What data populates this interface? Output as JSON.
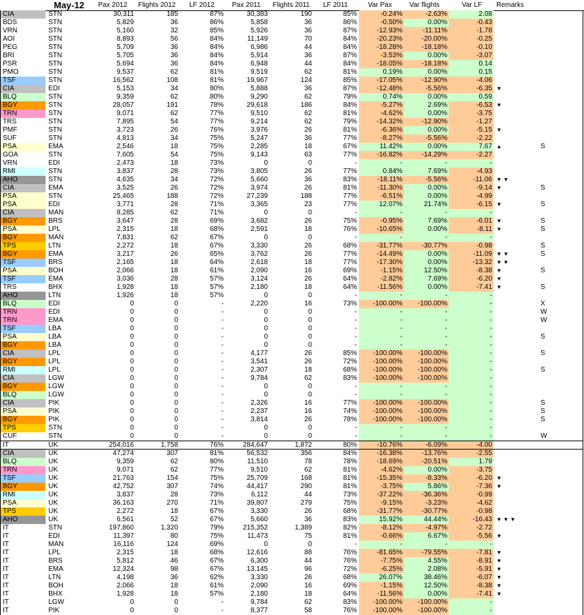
{
  "header": {
    "title": "May-12",
    "columns": [
      "Pax 2012",
      "Flights 2012",
      "LF 2012",
      "Pax 2011",
      "Flights 2011",
      "LF 2011",
      "Var Pax",
      "Var flights",
      "Var LF",
      "Remarks"
    ]
  },
  "colors": {
    "negative": "#ffcc99",
    "positive": "#ccffcc"
  },
  "code_colors": {
    "CIA": "#c0c0c0",
    "AHO": "#969696",
    "TSF": "#99ccff",
    "BLQ": "#ccffcc",
    "BGY": "#ff9900",
    "TRN": "#ff99cc",
    "PSA": "#ffffcc",
    "RMI": "#ccffff",
    "TPS": "#ffcc00"
  },
  "rows": [
    [
      "CIA",
      "STN",
      "30,311",
      "185",
      "87%",
      "30,383",
      "190",
      "85%",
      "-0.24%",
      "-2.63%",
      "2.08",
      "",
      ""
    ],
    [
      "BDS",
      "STN",
      "5,829",
      "36",
      "86%",
      "5,858",
      "36",
      "86%",
      "-0.50%",
      "0.00%",
      "-0.43",
      "",
      ""
    ],
    [
      "VRN",
      "STN",
      "5,160",
      "32",
      "85%",
      "5,926",
      "36",
      "87%",
      "-12.93%",
      "-11.11%",
      "-1.78",
      "",
      ""
    ],
    [
      "AOI",
      "STN",
      "8,893",
      "56",
      "84%",
      "11,149",
      "70",
      "84%",
      "-20.23%",
      "-20.00%",
      "-0.25",
      "",
      ""
    ],
    [
      "PEG",
      "STN",
      "5,709",
      "36",
      "84%",
      "6,986",
      "44",
      "84%",
      "-18.28%",
      "-18.18%",
      "-0.10",
      "",
      ""
    ],
    [
      "BRI",
      "STN",
      "5,705",
      "36",
      "84%",
      "5,914",
      "36",
      "87%",
      "-3.53%",
      "0.00%",
      "-3.07",
      "",
      ""
    ],
    [
      "PSR",
      "STN",
      "5,694",
      "36",
      "84%",
      "6,948",
      "44",
      "84%",
      "-18.05%",
      "-18.18%",
      "0.14",
      "",
      ""
    ],
    [
      "PMO",
      "STN",
      "9,537",
      "62",
      "81%",
      "9,519",
      "62",
      "81%",
      "0.19%",
      "0.00%",
      "0.15",
      "",
      ""
    ],
    [
      "TSF",
      "STN",
      "16,562",
      "108",
      "81%",
      "19,967",
      "124",
      "85%",
      "-17.05%",
      "-12.90%",
      "-4.06",
      "",
      ""
    ],
    [
      "CIA",
      "EDI",
      "5,153",
      "34",
      "80%",
      "5,888",
      "36",
      "87%",
      "-12.48%",
      "-5.56%",
      "-6.35",
      "▼",
      ""
    ],
    [
      "BLQ",
      "STN",
      "9,359",
      "62",
      "80%",
      "9,290",
      "62",
      "79%",
      "0.74%",
      "0.00%",
      "0.59",
      "",
      ""
    ],
    [
      "BGY",
      "STN",
      "28,057",
      "191",
      "78%",
      "29,618",
      "186",
      "84%",
      "-5.27%",
      "2.69%",
      "-6.53",
      "▼",
      ""
    ],
    [
      "TRN",
      "STN",
      "9,071",
      "62",
      "77%",
      "9,510",
      "62",
      "81%",
      "-4.62%",
      "0.00%",
      "-3.75",
      "",
      ""
    ],
    [
      "TRS",
      "STN",
      "7,895",
      "54",
      "77%",
      "9,214",
      "62",
      "79%",
      "-14.32%",
      "-12.90%",
      "-1.27",
      "",
      ""
    ],
    [
      "PMF",
      "STN",
      "3,723",
      "26",
      "76%",
      "3,976",
      "26",
      "81%",
      "-6.36%",
      "0.00%",
      "-5.15",
      "▼",
      ""
    ],
    [
      "SUF",
      "STN",
      "4,813",
      "34",
      "75%",
      "5,247",
      "36",
      "77%",
      "-8.27%",
      "-5.56%",
      "-2.22",
      "",
      ""
    ],
    [
      "PSA",
      "EMA",
      "2,546",
      "18",
      "75%",
      "2,285",
      "18",
      "67%",
      "11.42%",
      "0.00%",
      "7.67",
      "▲",
      "S"
    ],
    [
      "GOA",
      "STN",
      "7,605",
      "54",
      "75%",
      "9,143",
      "63",
      "77%",
      "-16.82%",
      "-14.29%",
      "-2.27",
      "",
      ""
    ],
    [
      "VRN",
      "EDI",
      "2,473",
      "18",
      "73%",
      "0",
      "0",
      "-",
      "-",
      "-",
      "-",
      "",
      ""
    ],
    [
      "RMI",
      "STN",
      "3,837",
      "28",
      "73%",
      "3,805",
      "26",
      "77%",
      "0.84%",
      "7.69%",
      "-4.93",
      "",
      ""
    ],
    [
      "AHO",
      "STN",
      "4,635",
      "34",
      "72%",
      "5,660",
      "36",
      "83%",
      "-18.11%",
      "-5.56%",
      "-11.06",
      "▼▼",
      ""
    ],
    [
      "CIA",
      "EMA",
      "3,525",
      "26",
      "72%",
      "3,974",
      "26",
      "81%",
      "-11.30%",
      "0.00%",
      "-9.14",
      "▼",
      "S"
    ],
    [
      "PSA",
      "STN",
      "25,465",
      "188",
      "72%",
      "27,239",
      "188",
      "77%",
      "-6.51%",
      "0.00%",
      "-4.99",
      "",
      ""
    ],
    [
      "PSA",
      "EDI",
      "3,771",
      "28",
      "71%",
      "3,365",
      "23",
      "77%",
      "12.07%",
      "21.74%",
      "-6.15",
      "▼",
      "S"
    ],
    [
      "CIA",
      "MAN",
      "8,285",
      "62",
      "71%",
      "0",
      "0",
      "-",
      "-",
      "-",
      "-",
      "",
      ""
    ],
    [
      "BGY",
      "BRS",
      "3,647",
      "28",
      "69%",
      "3,682",
      "26",
      "75%",
      "-0.95%",
      "7.69%",
      "-6.01",
      "▼",
      "S"
    ],
    [
      "PSA",
      "LPL",
      "2,315",
      "18",
      "68%",
      "2,591",
      "18",
      "76%",
      "-10.65%",
      "0.00%",
      "-8.11",
      "▼",
      "S"
    ],
    [
      "BGY",
      "MAN",
      "7,831",
      "62",
      "67%",
      "0",
      "0",
      "-",
      "-",
      "-",
      "-",
      "",
      ""
    ],
    [
      "TPS",
      "LTN",
      "2,272",
      "18",
      "67%",
      "3,330",
      "26",
      "68%",
      "-31.77%",
      "-30.77%",
      "-0.98",
      "",
      "S"
    ],
    [
      "BGY",
      "EMA",
      "3,217",
      "26",
      "65%",
      "3,762",
      "26",
      "77%",
      "-14.49%",
      "0.00%",
      "-11.09",
      "▼▼",
      "S"
    ],
    [
      "TSF",
      "BRS",
      "2,165",
      "18",
      "64%",
      "2,618",
      "18",
      "77%",
      "-17.30%",
      "0.00%",
      "-13.32",
      "▼▼",
      ""
    ],
    [
      "PSA",
      "BOH",
      "2,066",
      "18",
      "61%",
      "2,090",
      "16",
      "69%",
      "-1.15%",
      "12.50%",
      "-8.38",
      "▼",
      "S"
    ],
    [
      "TSF",
      "EMA",
      "3,036",
      "28",
      "57%",
      "3,124",
      "26",
      "64%",
      "-2.82%",
      "7.69%",
      "-6.20",
      "▼",
      ""
    ],
    [
      "TRS",
      "BHX",
      "1,928",
      "18",
      "57%",
      "2,180",
      "18",
      "64%",
      "-11.56%",
      "0.00%",
      "-7.41",
      "▼",
      "S"
    ],
    [
      "AHO",
      "LTN",
      "1,926",
      "18",
      "57%",
      "0",
      "0",
      "-",
      "-",
      "-",
      "-",
      "",
      ""
    ],
    [
      "BLQ",
      "EDI",
      "0",
      "0",
      "-",
      "2,220",
      "16",
      "73%",
      "-100.00%",
      "-100.00%",
      "-",
      "",
      "X"
    ],
    [
      "TRN",
      "EDI",
      "0",
      "0",
      "-",
      "0",
      "0",
      "-",
      "-",
      "-",
      "-",
      "",
      "W"
    ],
    [
      "TRN",
      "EMA",
      "0",
      "0",
      "-",
      "0",
      "0",
      "-",
      "-",
      "-",
      "-",
      "",
      "W"
    ],
    [
      "TSF",
      "LBA",
      "0",
      "0",
      "-",
      "0",
      "0",
      "-",
      "-",
      "-",
      "-",
      "",
      ""
    ],
    [
      "PSA",
      "LBA",
      "0",
      "0",
      "-",
      "0",
      "0",
      "-",
      "-",
      "-",
      "-",
      "",
      "S"
    ],
    [
      "BGY",
      "LBA",
      "0",
      "0",
      "-",
      "0",
      "0",
      "-",
      "-",
      "-",
      "-",
      "",
      ""
    ],
    [
      "CIA",
      "LPL",
      "0",
      "0",
      "-",
      "4,177",
      "26",
      "85%",
      "-100.00%",
      "-100.00%",
      "-",
      "",
      "S"
    ],
    [
      "BGY",
      "LPL",
      "0",
      "0",
      "-",
      "3,541",
      "26",
      "72%",
      "-100.00%",
      "-100.00%",
      "-",
      "",
      ""
    ],
    [
      "RMI",
      "LPL",
      "0",
      "0",
      "-",
      "2,307",
      "18",
      "68%",
      "-100.00%",
      "-100.00%",
      "-",
      "",
      "S"
    ],
    [
      "CIA",
      "LGW",
      "0",
      "0",
      "-",
      "9,784",
      "62",
      "83%",
      "-100.00%",
      "-100.00%",
      "-",
      "",
      ""
    ],
    [
      "BGY",
      "LGW",
      "0",
      "0",
      "-",
      "0",
      "0",
      "-",
      "-",
      "-",
      "-",
      "",
      ""
    ],
    [
      "BLQ",
      "LGW",
      "0",
      "0",
      "-",
      "0",
      "0",
      "-",
      "-",
      "-",
      "-",
      "",
      ""
    ],
    [
      "CIA",
      "PIK",
      "0",
      "0",
      "-",
      "2,326",
      "16",
      "77%",
      "-100.00%",
      "-100.00%",
      "-",
      "",
      "S"
    ],
    [
      "PSA",
      "PIK",
      "0",
      "0",
      "-",
      "2,237",
      "16",
      "74%",
      "-100.00%",
      "-100.00%",
      "-",
      "",
      "S"
    ],
    [
      "BGY",
      "PIK",
      "0",
      "0",
      "-",
      "3,814",
      "26",
      "78%",
      "-100.00%",
      "-100.00%",
      "-",
      "",
      "S"
    ],
    [
      "TPS",
      "STN",
      "0",
      "0",
      "-",
      "0",
      "0",
      "-",
      "-",
      "-",
      "-",
      "",
      ""
    ],
    [
      "CUF",
      "STN",
      "0",
      "0",
      "-",
      "0",
      "0",
      "-",
      "-",
      "-",
      "-",
      "",
      "W"
    ]
  ],
  "total_row": [
    "IT",
    "UK",
    "254,016",
    "1,758",
    "76%",
    "284,647",
    "1,872",
    "80%",
    "-10.76%",
    "-6.09%",
    "-4.00",
    "",
    ""
  ],
  "summary_rows": [
    [
      "CIA",
      "UK",
      "47,274",
      "307",
      "81%",
      "56,532",
      "356",
      "84%",
      "-16.38%",
      "-13.76%",
      "-2.55",
      "",
      ""
    ],
    [
      "BLQ",
      "UK",
      "9,359",
      "62",
      "80%",
      "11,510",
      "78",
      "78%",
      "-18.69%",
      "-20.51%",
      "1.79",
      "",
      ""
    ],
    [
      "TRN",
      "UK",
      "9,071",
      "62",
      "77%",
      "9,510",
      "62",
      "81%",
      "-4.62%",
      "0.00%",
      "-3.75",
      "",
      ""
    ],
    [
      "TSF",
      "UK",
      "21,763",
      "154",
      "75%",
      "25,709",
      "168",
      "81%",
      "-15.35%",
      "-8.33%",
      "-6.20",
      "▼",
      ""
    ],
    [
      "BGY",
      "UK",
      "42,752",
      "307",
      "74%",
      "44,417",
      "290",
      "81%",
      "-3.75%",
      "5.86%",
      "-7.36",
      "▼",
      ""
    ],
    [
      "RMI",
      "UK",
      "3,837",
      "28",
      "73%",
      "6,112",
      "44",
      "73%",
      "-37.22%",
      "-36.36%",
      "-0.99",
      "",
      ""
    ],
    [
      "PSA",
      "UK",
      "36,163",
      "270",
      "71%",
      "39,807",
      "279",
      "75%",
      "-9.15%",
      "-3.23%",
      "-4.62",
      "",
      ""
    ],
    [
      "TPS",
      "UK",
      "2,272",
      "18",
      "67%",
      "3,330",
      "26",
      "68%",
      "-31.77%",
      "-30.77%",
      "-0.98",
      "",
      ""
    ],
    [
      "AHO",
      "UK",
      "6,561",
      "52",
      "67%",
      "5,660",
      "36",
      "83%",
      "15.92%",
      "44.44%",
      "-16.43",
      "▼▼▼",
      ""
    ],
    [
      "IT",
      "STN",
      "197,860",
      "1,320",
      "79%",
      "215,352",
      "1,389",
      "82%",
      "-8.12%",
      "-4.97%",
      "-2.72",
      "",
      ""
    ],
    [
      "IT",
      "EDI",
      "11,397",
      "80",
      "75%",
      "11,473",
      "75",
      "81%",
      "-0.66%",
      "6.67%",
      "-5.56",
      "▼",
      ""
    ],
    [
      "IT",
      "MAN",
      "16,116",
      "124",
      "69%",
      "0",
      "0",
      "-",
      "-",
      "-",
      "-",
      "",
      ""
    ],
    [
      "IT",
      "LPL",
      "2,315",
      "18",
      "68%",
      "12,616",
      "88",
      "76%",
      "-81.65%",
      "-79.55%",
      "-7.81",
      "▼",
      ""
    ],
    [
      "IT",
      "BRS",
      "5,812",
      "46",
      "67%",
      "6,300",
      "44",
      "76%",
      "-7.75%",
      "4.55%",
      "-8.91",
      "▼",
      ""
    ],
    [
      "IT",
      "EMA",
      "12,324",
      "98",
      "67%",
      "13,145",
      "96",
      "72%",
      "-6.25%",
      "2.08%",
      "-5.91",
      "▼",
      ""
    ],
    [
      "IT",
      "LTN",
      "4,198",
      "36",
      "62%",
      "3,330",
      "26",
      "68%",
      "26.07%",
      "38.46%",
      "-6.07",
      "▼",
      ""
    ],
    [
      "IT",
      "BOH",
      "2,066",
      "18",
      "61%",
      "2,090",
      "16",
      "69%",
      "-1.15%",
      "12.50%",
      "-8.38",
      "▼",
      ""
    ],
    [
      "IT",
      "BHX",
      "1,928",
      "18",
      "57%",
      "2,180",
      "18",
      "64%",
      "-11.56%",
      "0.00%",
      "-7.41",
      "▼",
      ""
    ],
    [
      "IT",
      "LGW",
      "0",
      "0",
      "-",
      "9,784",
      "62",
      "83%",
      "-100.00%",
      "-100.00%",
      "-",
      "",
      ""
    ],
    [
      "IT",
      "PIK",
      "0",
      "0",
      "-",
      "8,377",
      "58",
      "76%",
      "-100.00%",
      "-100.00%",
      "-",
      "",
      ""
    ]
  ]
}
